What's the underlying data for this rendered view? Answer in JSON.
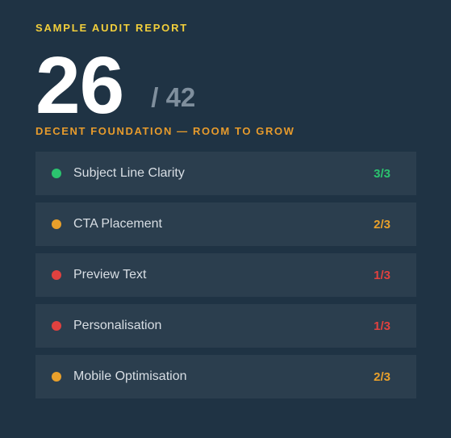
{
  "report": {
    "kicker": "SAMPLE AUDIT REPORT",
    "score": "26",
    "total": "/ 42",
    "verdict": "DECENT FOUNDATION — ROOM TO GROW"
  },
  "colors": {
    "green": "#2bc46f",
    "amber": "#e9a02b",
    "red": "#e0413f"
  },
  "items": [
    {
      "label": "Subject Line Clarity",
      "score": "3/3",
      "status": "green"
    },
    {
      "label": "CTA Placement",
      "score": "2/3",
      "status": "amber"
    },
    {
      "label": "Preview Text",
      "score": "1/3",
      "status": "red"
    },
    {
      "label": "Personalisation",
      "score": "1/3",
      "status": "red"
    },
    {
      "label": "Mobile Optimisation",
      "score": "2/3",
      "status": "amber"
    }
  ]
}
